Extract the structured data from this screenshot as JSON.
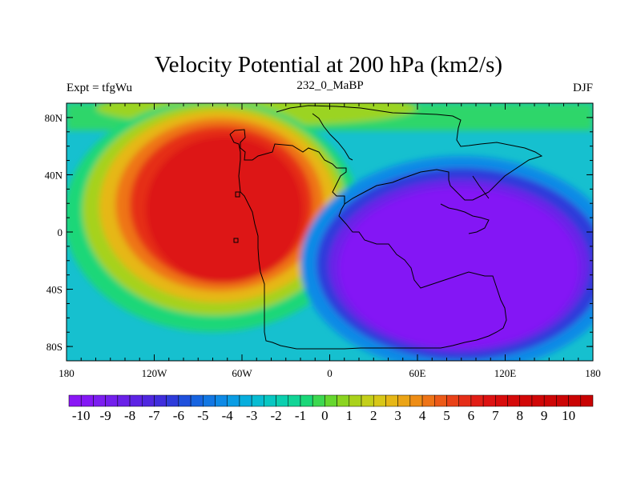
{
  "chart_data": {
    "type": "heatmap",
    "title": "Velocity Potential at 200 hPa (km2/s)",
    "left_label": "Expt = tfgWu",
    "center_label": "232_0_MaBP",
    "right_label": "DJF",
    "xlim": [
      -180,
      180
    ],
    "ylim": [
      -90,
      90
    ],
    "x_ticks": [
      {
        "value": -180,
        "label": "180"
      },
      {
        "value": -120,
        "label": "120W"
      },
      {
        "value": -60,
        "label": "60W"
      },
      {
        "value": 0,
        "label": "0"
      },
      {
        "value": 60,
        "label": "60E"
      },
      {
        "value": 120,
        "label": "120E"
      },
      {
        "value": 180,
        "label": "180"
      }
    ],
    "y_ticks": [
      {
        "value": 80,
        "label": "80N"
      },
      {
        "value": 40,
        "label": "40N"
      },
      {
        "value": 0,
        "label": "0"
      },
      {
        "value": -40,
        "label": "40S"
      },
      {
        "value": -80,
        "label": "80S"
      }
    ],
    "field_features": [
      {
        "name": "positive-maximum",
        "lon": -85,
        "lat": 10,
        "value": 10.5
      },
      {
        "name": "negative-minimum",
        "lon": 90,
        "lat": -20,
        "value": -10.5
      }
    ],
    "colorbar": {
      "min": -10.5,
      "step": 0.5,
      "colors": [
        "#8A17F5",
        "#8418F5",
        "#7C1EF0",
        "#731FEC",
        "#6A21E8",
        "#5D23E4",
        "#4F27DF",
        "#3F2DDC",
        "#2E3BDA",
        "#1F50DC",
        "#1764E0",
        "#1277E3",
        "#0E8AE6",
        "#0B9DE4",
        "#08AEDD",
        "#08BCD2",
        "#08C7C2",
        "#0BCFAF",
        "#12D496",
        "#1AD778",
        "#3DD850",
        "#66D72E",
        "#8BD420",
        "#AAD21C",
        "#C4CF1A",
        "#D8C718",
        "#E6B716",
        "#EBA416",
        "#EE8D16",
        "#EE7417",
        "#EC5A18",
        "#E94218",
        "#E52E18",
        "#E11E16",
        "#DD1212",
        "#D80C0C",
        "#D50A0A",
        "#D20808",
        "#D00707",
        "#CE0606",
        "#CC0505",
        "#CA0404",
        "#C80303"
      ],
      "labels": [
        "-10",
        "-9",
        "-8",
        "-7",
        "-6",
        "-5",
        "-4",
        "-3",
        "-2",
        "-1",
        "0",
        "1",
        "2",
        "3",
        "4",
        "5",
        "6",
        "7",
        "8",
        "9",
        "10"
      ]
    }
  }
}
